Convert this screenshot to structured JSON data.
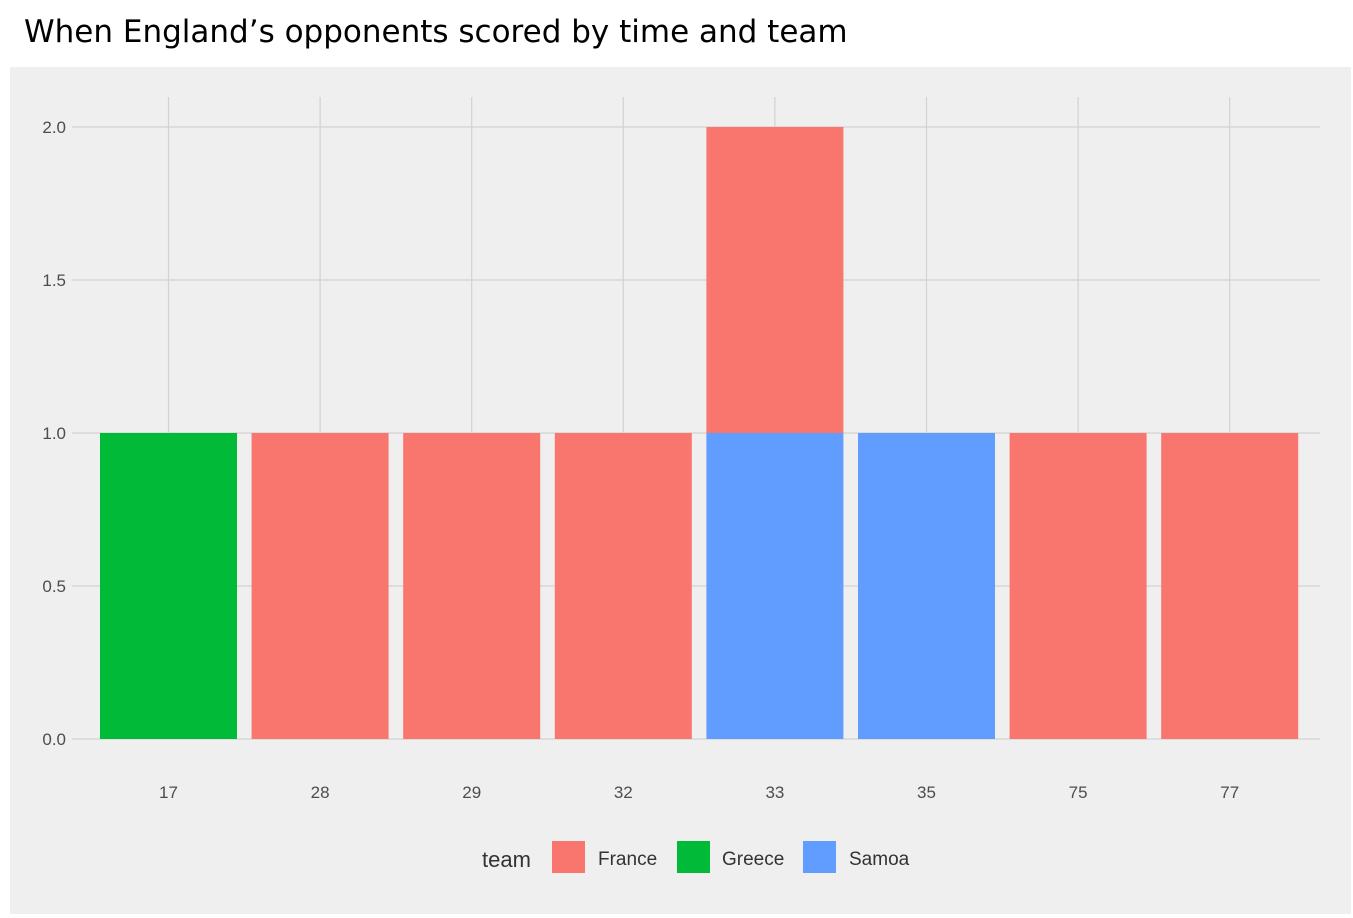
{
  "title": "When England’s opponents scored by time and team",
  "chart_data": {
    "type": "bar",
    "stacked": true,
    "categories": [
      "17",
      "28",
      "29",
      "32",
      "33",
      "35",
      "75",
      "77"
    ],
    "series": [
      {
        "name": "France",
        "color": "#f8766d",
        "values": [
          0,
          1,
          1,
          1,
          1,
          0,
          1,
          1
        ]
      },
      {
        "name": "Greece",
        "color": "#00ba38",
        "values": [
          1,
          0,
          0,
          0,
          0,
          0,
          0,
          0
        ]
      },
      {
        "name": "Samoa",
        "color": "#619cff",
        "values": [
          0,
          0,
          0,
          0,
          1,
          1,
          0,
          0
        ]
      }
    ],
    "stack_order_bottom_to_top": [
      "Samoa",
      "Greece",
      "France"
    ],
    "ylim": [
      0,
      2.1
    ],
    "yticks": [
      "0.0",
      "0.5",
      "1.0",
      "1.5",
      "2.0"
    ],
    "xlabel": "",
    "ylabel": "",
    "grid": true,
    "legend": {
      "title": "team",
      "position": "bottom"
    },
    "panel_background": "#efefef"
  }
}
